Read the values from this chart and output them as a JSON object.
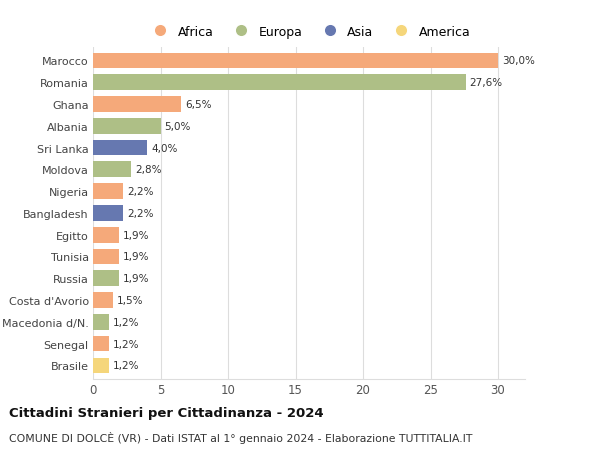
{
  "countries": [
    "Marocco",
    "Romania",
    "Ghana",
    "Albania",
    "Sri Lanka",
    "Moldova",
    "Nigeria",
    "Bangladesh",
    "Egitto",
    "Tunisia",
    "Russia",
    "Costa d'Avorio",
    "Macedonia d/N.",
    "Senegal",
    "Brasile"
  ],
  "values": [
    30.0,
    27.6,
    6.5,
    5.0,
    4.0,
    2.8,
    2.2,
    2.2,
    1.9,
    1.9,
    1.9,
    1.5,
    1.2,
    1.2,
    1.2
  ],
  "labels": [
    "30,0%",
    "27,6%",
    "6,5%",
    "5,0%",
    "4,0%",
    "2,8%",
    "2,2%",
    "2,2%",
    "1,9%",
    "1,9%",
    "1,9%",
    "1,5%",
    "1,2%",
    "1,2%",
    "1,2%"
  ],
  "continents": [
    "Africa",
    "Europa",
    "Africa",
    "Europa",
    "Asia",
    "Europa",
    "Africa",
    "Asia",
    "Africa",
    "Africa",
    "Europa",
    "Africa",
    "Europa",
    "Africa",
    "America"
  ],
  "colors": {
    "Africa": "#F5A97A",
    "Europa": "#AEBF86",
    "Asia": "#6678B0",
    "America": "#F5D67B"
  },
  "legend_order": [
    "Africa",
    "Europa",
    "Asia",
    "America"
  ],
  "title": "Cittadini Stranieri per Cittadinanza - 2024",
  "subtitle": "COMUNE DI DOLCÈ (VR) - Dati ISTAT al 1° gennaio 2024 - Elaborazione TUTTITALIA.IT",
  "xlim": [
    0,
    32
  ],
  "xticks": [
    0,
    5,
    10,
    15,
    20,
    25,
    30
  ],
  "background_color": "#ffffff",
  "grid_color": "#dddddd"
}
